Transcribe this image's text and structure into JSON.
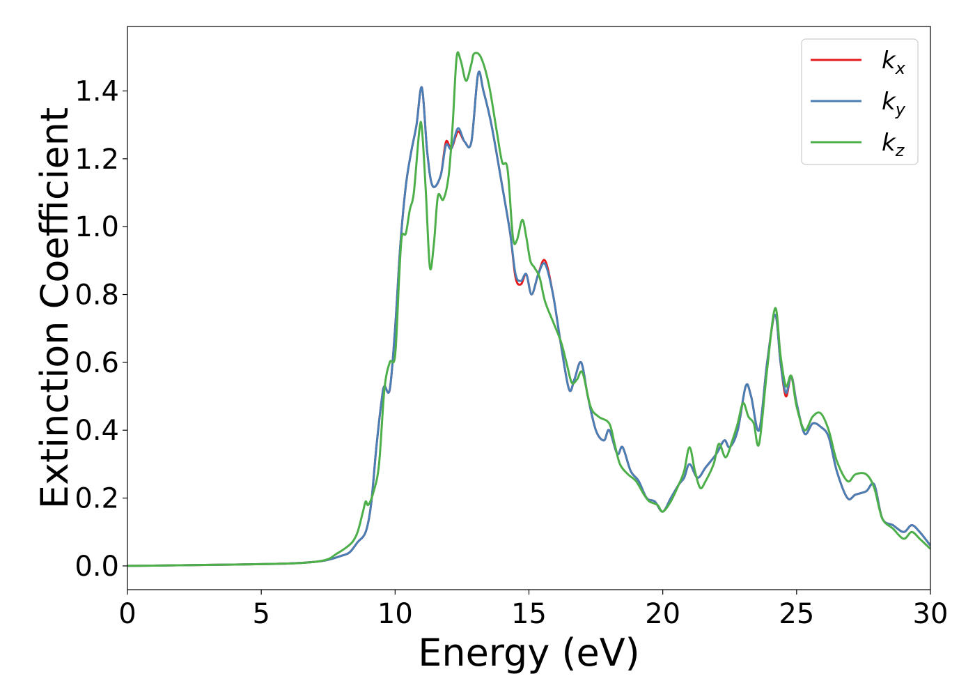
{
  "chart_data": {
    "type": "line",
    "xlabel": "Energy (eV)",
    "ylabel": "Extinction Coefficient",
    "xlim": [
      0,
      30
    ],
    "ylim": [
      -0.07,
      1.59
    ],
    "xticks": [
      0,
      5,
      10,
      15,
      20,
      25,
      30
    ],
    "xtick_labels": [
      "0",
      "5",
      "10",
      "15",
      "20",
      "25",
      "30"
    ],
    "yticks": [
      0.0,
      0.2,
      0.4,
      0.6,
      0.8,
      1.0,
      1.2,
      1.4
    ],
    "ytick_labels": [
      "0.0",
      "0.2",
      "0.4",
      "0.6",
      "0.8",
      "1.0",
      "1.2",
      "1.4"
    ],
    "grid": false,
    "legend_position": "top-right",
    "series": [
      {
        "name": "k_x",
        "legend_base": "k",
        "legend_sub": "x",
        "color": "#e41a1c",
        "points": [
          [
            0,
            0.0
          ],
          [
            2,
            0.002
          ],
          [
            4,
            0.004
          ],
          [
            6,
            0.007
          ],
          [
            7,
            0.012
          ],
          [
            7.5,
            0.018
          ],
          [
            8,
            0.03
          ],
          [
            8.3,
            0.04
          ],
          [
            8.6,
            0.07
          ],
          [
            8.9,
            0.1
          ],
          [
            9.1,
            0.18
          ],
          [
            9.3,
            0.35
          ],
          [
            9.5,
            0.49
          ],
          [
            9.6,
            0.53
          ],
          [
            9.8,
            0.52
          ],
          [
            10.0,
            0.7
          ],
          [
            10.2,
            0.95
          ],
          [
            10.4,
            1.12
          ],
          [
            10.6,
            1.22
          ],
          [
            10.8,
            1.3
          ],
          [
            11.0,
            1.41
          ],
          [
            11.2,
            1.22
          ],
          [
            11.4,
            1.12
          ],
          [
            11.7,
            1.15
          ],
          [
            11.9,
            1.25
          ],
          [
            12.1,
            1.23
          ],
          [
            12.35,
            1.28
          ],
          [
            12.6,
            1.25
          ],
          [
            12.85,
            1.25
          ],
          [
            13.1,
            1.45
          ],
          [
            13.3,
            1.4
          ],
          [
            13.6,
            1.3
          ],
          [
            14.0,
            1.12
          ],
          [
            14.3,
            0.98
          ],
          [
            14.5,
            0.85
          ],
          [
            14.7,
            0.83
          ],
          [
            14.9,
            0.86
          ],
          [
            15.1,
            0.8
          ],
          [
            15.35,
            0.86
          ],
          [
            15.6,
            0.9
          ],
          [
            15.9,
            0.8
          ],
          [
            16.2,
            0.65
          ],
          [
            16.5,
            0.52
          ],
          [
            16.7,
            0.55
          ],
          [
            16.95,
            0.6
          ],
          [
            17.2,
            0.5
          ],
          [
            17.5,
            0.4
          ],
          [
            17.8,
            0.37
          ],
          [
            18.0,
            0.4
          ],
          [
            18.3,
            0.33
          ],
          [
            18.5,
            0.35
          ],
          [
            18.8,
            0.28
          ],
          [
            19.1,
            0.25
          ],
          [
            19.4,
            0.2
          ],
          [
            19.7,
            0.19
          ],
          [
            20.0,
            0.16
          ],
          [
            20.3,
            0.2
          ],
          [
            20.6,
            0.24
          ],
          [
            20.8,
            0.26
          ],
          [
            21.0,
            0.3
          ],
          [
            21.3,
            0.26
          ],
          [
            21.6,
            0.29
          ],
          [
            22.0,
            0.33
          ],
          [
            22.3,
            0.37
          ],
          [
            22.5,
            0.35
          ],
          [
            22.8,
            0.4
          ],
          [
            23.1,
            0.53
          ],
          [
            23.3,
            0.5
          ],
          [
            23.6,
            0.4
          ],
          [
            23.9,
            0.6
          ],
          [
            24.2,
            0.74
          ],
          [
            24.4,
            0.6
          ],
          [
            24.6,
            0.5
          ],
          [
            24.8,
            0.56
          ],
          [
            25.0,
            0.48
          ],
          [
            25.3,
            0.39
          ],
          [
            25.6,
            0.42
          ],
          [
            25.9,
            0.41
          ],
          [
            26.2,
            0.38
          ],
          [
            26.5,
            0.28
          ],
          [
            26.9,
            0.2
          ],
          [
            27.2,
            0.21
          ],
          [
            27.6,
            0.22
          ],
          [
            27.9,
            0.24
          ],
          [
            28.2,
            0.14
          ],
          [
            28.6,
            0.12
          ],
          [
            29.0,
            0.1
          ],
          [
            29.3,
            0.12
          ],
          [
            29.6,
            0.1
          ],
          [
            30.0,
            0.06
          ]
        ]
      },
      {
        "name": "k_y",
        "legend_base": "k",
        "legend_sub": "y",
        "color": "#4a7fb5",
        "points": [
          [
            0,
            0.0
          ],
          [
            2,
            0.002
          ],
          [
            4,
            0.004
          ],
          [
            6,
            0.007
          ],
          [
            7,
            0.012
          ],
          [
            7.5,
            0.018
          ],
          [
            8,
            0.03
          ],
          [
            8.3,
            0.04
          ],
          [
            8.6,
            0.07
          ],
          [
            8.9,
            0.1
          ],
          [
            9.1,
            0.18
          ],
          [
            9.3,
            0.35
          ],
          [
            9.5,
            0.49
          ],
          [
            9.6,
            0.53
          ],
          [
            9.8,
            0.52
          ],
          [
            10.0,
            0.7
          ],
          [
            10.2,
            0.95
          ],
          [
            10.4,
            1.12
          ],
          [
            10.6,
            1.22
          ],
          [
            10.8,
            1.3
          ],
          [
            11.0,
            1.41
          ],
          [
            11.2,
            1.22
          ],
          [
            11.4,
            1.12
          ],
          [
            11.7,
            1.15
          ],
          [
            11.9,
            1.24
          ],
          [
            12.1,
            1.23
          ],
          [
            12.35,
            1.29
          ],
          [
            12.6,
            1.25
          ],
          [
            12.85,
            1.25
          ],
          [
            13.1,
            1.45
          ],
          [
            13.3,
            1.4
          ],
          [
            13.6,
            1.3
          ],
          [
            14.0,
            1.12
          ],
          [
            14.3,
            0.98
          ],
          [
            14.5,
            0.86
          ],
          [
            14.7,
            0.84
          ],
          [
            14.9,
            0.86
          ],
          [
            15.1,
            0.8
          ],
          [
            15.35,
            0.86
          ],
          [
            15.6,
            0.89
          ],
          [
            15.9,
            0.8
          ],
          [
            16.2,
            0.65
          ],
          [
            16.5,
            0.52
          ],
          [
            16.7,
            0.55
          ],
          [
            16.95,
            0.6
          ],
          [
            17.2,
            0.5
          ],
          [
            17.5,
            0.4
          ],
          [
            17.8,
            0.37
          ],
          [
            18.0,
            0.4
          ],
          [
            18.3,
            0.33
          ],
          [
            18.5,
            0.35
          ],
          [
            18.8,
            0.28
          ],
          [
            19.1,
            0.25
          ],
          [
            19.4,
            0.2
          ],
          [
            19.7,
            0.19
          ],
          [
            20.0,
            0.16
          ],
          [
            20.3,
            0.2
          ],
          [
            20.6,
            0.24
          ],
          [
            20.8,
            0.26
          ],
          [
            21.0,
            0.3
          ],
          [
            21.3,
            0.26
          ],
          [
            21.6,
            0.29
          ],
          [
            22.0,
            0.33
          ],
          [
            22.3,
            0.37
          ],
          [
            22.5,
            0.35
          ],
          [
            22.8,
            0.4
          ],
          [
            23.1,
            0.53
          ],
          [
            23.3,
            0.5
          ],
          [
            23.6,
            0.4
          ],
          [
            23.9,
            0.6
          ],
          [
            24.2,
            0.74
          ],
          [
            24.4,
            0.6
          ],
          [
            24.6,
            0.51
          ],
          [
            24.8,
            0.56
          ],
          [
            25.0,
            0.48
          ],
          [
            25.3,
            0.39
          ],
          [
            25.6,
            0.42
          ],
          [
            25.9,
            0.41
          ],
          [
            26.2,
            0.38
          ],
          [
            26.5,
            0.28
          ],
          [
            26.9,
            0.2
          ],
          [
            27.2,
            0.21
          ],
          [
            27.6,
            0.22
          ],
          [
            27.9,
            0.24
          ],
          [
            28.2,
            0.14
          ],
          [
            28.6,
            0.12
          ],
          [
            29.0,
            0.1
          ],
          [
            29.3,
            0.12
          ],
          [
            29.6,
            0.1
          ],
          [
            30.0,
            0.06
          ]
        ]
      },
      {
        "name": "k_z",
        "legend_base": "k",
        "legend_sub": "z",
        "color": "#4daf4a",
        "points": [
          [
            0,
            0.0
          ],
          [
            2,
            0.002
          ],
          [
            4,
            0.004
          ],
          [
            6,
            0.007
          ],
          [
            7,
            0.012
          ],
          [
            7.5,
            0.02
          ],
          [
            7.8,
            0.035
          ],
          [
            8.1,
            0.05
          ],
          [
            8.4,
            0.07
          ],
          [
            8.6,
            0.1
          ],
          [
            8.8,
            0.16
          ],
          [
            8.9,
            0.19
          ],
          [
            9.0,
            0.18
          ],
          [
            9.2,
            0.22
          ],
          [
            9.4,
            0.3
          ],
          [
            9.6,
            0.52
          ],
          [
            9.8,
            0.6
          ],
          [
            10.0,
            0.62
          ],
          [
            10.15,
            0.85
          ],
          [
            10.25,
            0.97
          ],
          [
            10.4,
            0.98
          ],
          [
            10.55,
            1.05
          ],
          [
            10.7,
            1.1
          ],
          [
            10.9,
            1.28
          ],
          [
            11.0,
            1.29
          ],
          [
            11.15,
            1.1
          ],
          [
            11.3,
            0.88
          ],
          [
            11.45,
            0.95
          ],
          [
            11.6,
            1.09
          ],
          [
            11.8,
            1.08
          ],
          [
            12.0,
            1.15
          ],
          [
            12.15,
            1.3
          ],
          [
            12.3,
            1.5
          ],
          [
            12.45,
            1.49
          ],
          [
            12.65,
            1.43
          ],
          [
            12.85,
            1.48
          ],
          [
            12.95,
            1.51
          ],
          [
            13.2,
            1.5
          ],
          [
            13.5,
            1.42
          ],
          [
            13.8,
            1.28
          ],
          [
            14.0,
            1.19
          ],
          [
            14.2,
            1.17
          ],
          [
            14.4,
            0.97
          ],
          [
            14.55,
            0.96
          ],
          [
            14.75,
            1.02
          ],
          [
            14.9,
            0.97
          ],
          [
            15.05,
            0.9
          ],
          [
            15.2,
            0.88
          ],
          [
            15.4,
            0.85
          ],
          [
            15.6,
            0.78
          ],
          [
            15.9,
            0.72
          ],
          [
            16.2,
            0.66
          ],
          [
            16.4,
            0.6
          ],
          [
            16.6,
            0.54
          ],
          [
            16.8,
            0.55
          ],
          [
            17.0,
            0.57
          ],
          [
            17.3,
            0.47
          ],
          [
            17.6,
            0.44
          ],
          [
            18.0,
            0.42
          ],
          [
            18.2,
            0.36
          ],
          [
            18.4,
            0.3
          ],
          [
            18.7,
            0.27
          ],
          [
            19.0,
            0.25
          ],
          [
            19.3,
            0.21
          ],
          [
            19.5,
            0.19
          ],
          [
            19.8,
            0.18
          ],
          [
            20.0,
            0.16
          ],
          [
            20.3,
            0.19
          ],
          [
            20.6,
            0.24
          ],
          [
            20.8,
            0.28
          ],
          [
            21.0,
            0.35
          ],
          [
            21.2,
            0.28
          ],
          [
            21.4,
            0.23
          ],
          [
            21.6,
            0.25
          ],
          [
            21.9,
            0.3
          ],
          [
            22.1,
            0.36
          ],
          [
            22.35,
            0.32
          ],
          [
            22.6,
            0.37
          ],
          [
            22.8,
            0.42
          ],
          [
            23.0,
            0.48
          ],
          [
            23.2,
            0.44
          ],
          [
            23.4,
            0.42
          ],
          [
            23.6,
            0.36
          ],
          [
            23.9,
            0.58
          ],
          [
            24.2,
            0.76
          ],
          [
            24.4,
            0.62
          ],
          [
            24.6,
            0.53
          ],
          [
            24.8,
            0.56
          ],
          [
            25.0,
            0.47
          ],
          [
            25.3,
            0.4
          ],
          [
            25.6,
            0.44
          ],
          [
            25.9,
            0.45
          ],
          [
            26.2,
            0.4
          ],
          [
            26.5,
            0.31
          ],
          [
            26.9,
            0.25
          ],
          [
            27.2,
            0.27
          ],
          [
            27.6,
            0.27
          ],
          [
            27.9,
            0.23
          ],
          [
            28.2,
            0.14
          ],
          [
            28.6,
            0.11
          ],
          [
            29.0,
            0.08
          ],
          [
            29.3,
            0.1
          ],
          [
            29.6,
            0.08
          ],
          [
            30.0,
            0.05
          ]
        ]
      }
    ]
  }
}
